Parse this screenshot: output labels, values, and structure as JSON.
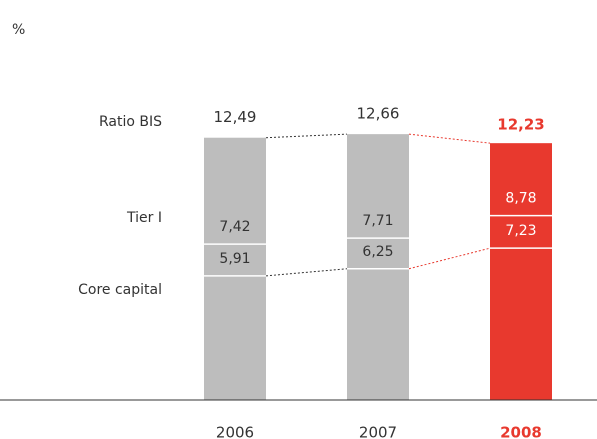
{
  "chart_data": {
    "type": "bar",
    "unit": "%",
    "categories": [
      "2006",
      "2007",
      "2008"
    ],
    "colors": [
      "#bdbdbd",
      "#bdbdbd",
      "#e8392e"
    ],
    "series": [
      {
        "name": "Ratio BIS",
        "values": [
          12.49,
          12.66,
          12.23
        ],
        "value_labels": [
          "12,49",
          "12,66",
          "12,23"
        ]
      },
      {
        "name": "Tier I",
        "values": [
          7.42,
          7.71,
          8.78
        ],
        "value_labels": [
          "7,42",
          "7,71",
          "8,78"
        ]
      },
      {
        "name": "Core capital",
        "values": [
          5.91,
          6.25,
          7.23
        ],
        "value_labels": [
          "5,91",
          "6,25",
          "7,23"
        ]
      }
    ]
  }
}
